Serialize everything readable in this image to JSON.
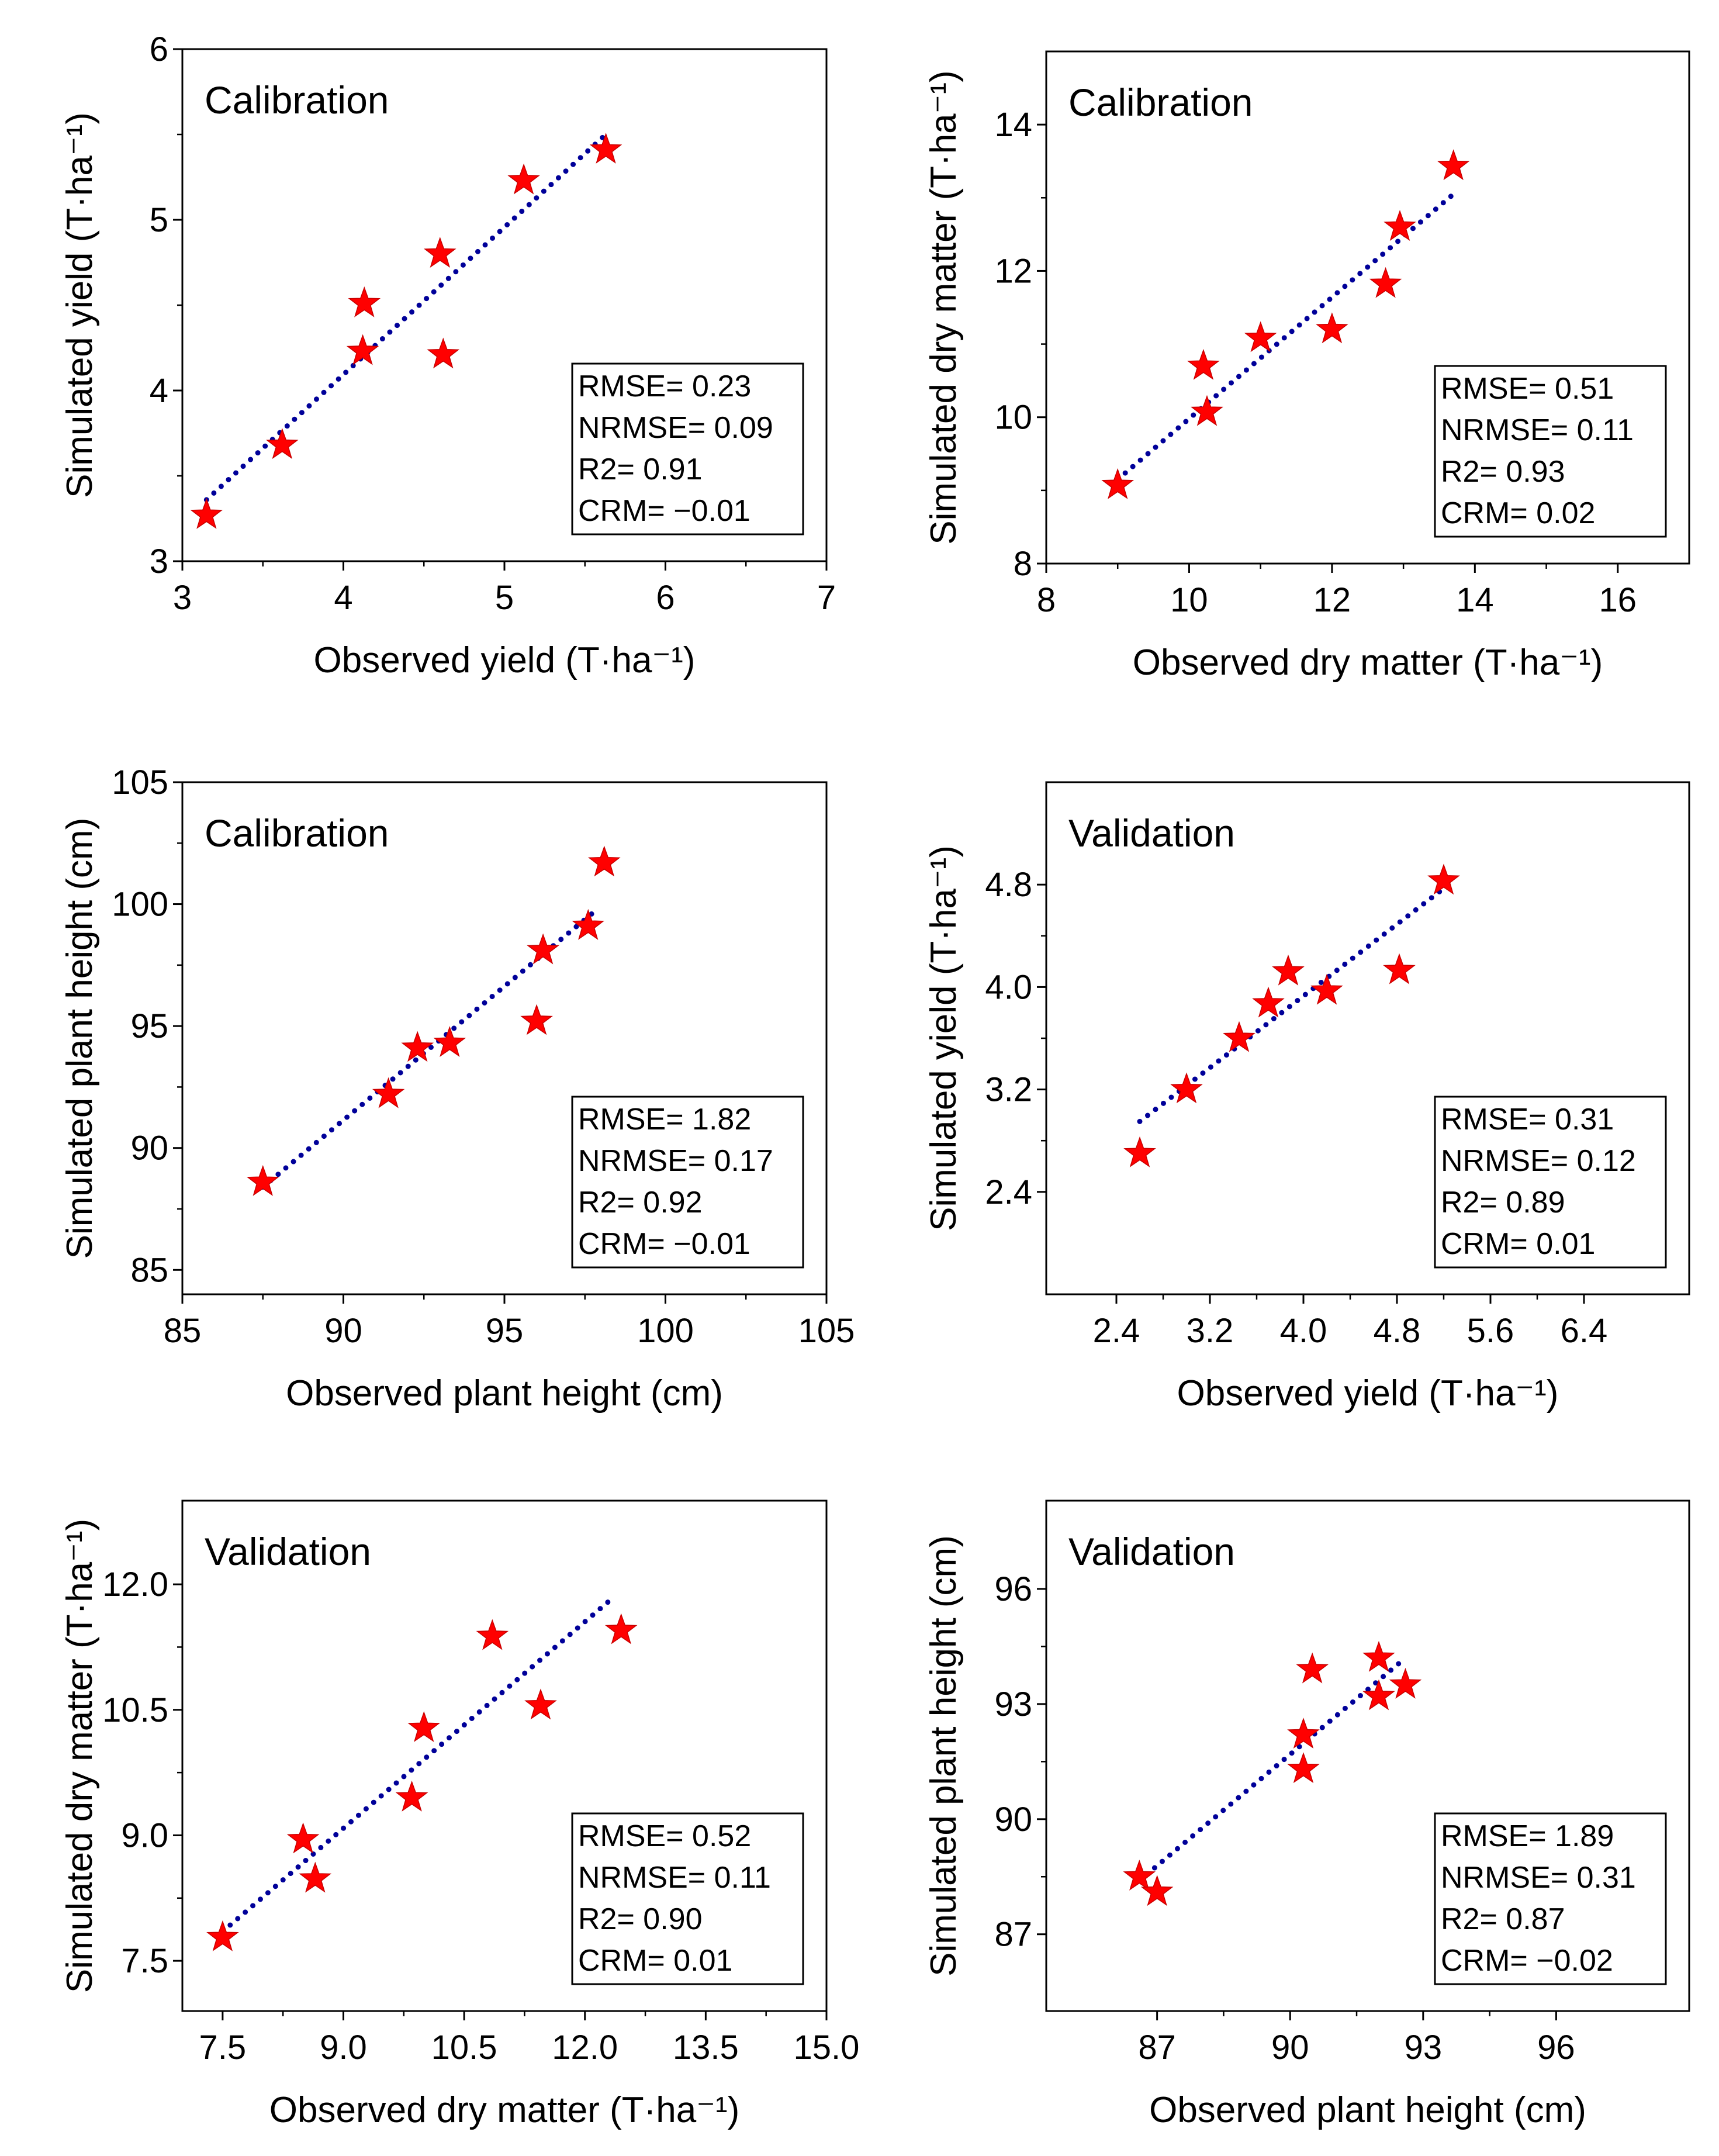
{
  "colors": {
    "marker": "#ff0000",
    "marker_stroke": "#c80000",
    "fit_line": "#000099",
    "axis": "#000000"
  },
  "chart_data": [
    {
      "type": "scatter",
      "title": "Calibration",
      "xlabel": "Observed yield (T·ha⁻¹)",
      "ylabel": "Simulated  yield (T·ha⁻¹)",
      "xlim": [
        3,
        7
      ],
      "ylim": [
        3,
        6
      ],
      "xticks": [
        "3",
        "4",
        "5",
        "6",
        "7"
      ],
      "yticks": [
        "3",
        "4",
        "5",
        "6"
      ],
      "x": [
        3.15,
        3.62,
        4.12,
        4.13,
        4.6,
        4.62,
        5.12,
        5.63
      ],
      "y": [
        3.27,
        3.68,
        4.23,
        4.51,
        4.8,
        4.21,
        5.23,
        5.41
      ],
      "fit": {
        "x": [
          3.15,
          5.63
        ],
        "y": [
          3.36,
          5.5
        ]
      },
      "legend": "bottom-right",
      "stats": [
        "RMSE= 0.23",
        "NRMSE= 0.09",
        "R2= 0.91",
        "CRM= −0.01"
      ]
    },
    {
      "type": "scatter",
      "title": "Calibration",
      "xlabel": "Observed dry matter (T·ha⁻¹)",
      "ylabel": "Simulated dry matter (T·ha⁻¹)",
      "xlim": [
        8,
        17
      ],
      "ylim": [
        8,
        15
      ],
      "xticks": [
        "8",
        "10",
        "12",
        "14",
        "16"
      ],
      "yticks": [
        "8",
        "10",
        "12",
        "14"
      ],
      "x": [
        9.0,
        10.2,
        10.25,
        11.0,
        12.0,
        12.75,
        12.95,
        13.7
      ],
      "y": [
        9.07,
        10.7,
        10.07,
        11.08,
        11.2,
        11.82,
        12.6,
        13.43
      ],
      "fit": {
        "x": [
          9.0,
          13.7
        ],
        "y": [
          9.15,
          13.05
        ]
      },
      "legend": "bottom-right",
      "stats": [
        "RMSE= 0.51",
        "NRMSE= 0.11",
        "R2= 0.93",
        "CRM= 0.02"
      ]
    },
    {
      "type": "scatter",
      "title": "Calibration",
      "xlabel": "Observed plant height (cm)",
      "ylabel": "Simulated plant height (cm)",
      "xlim": [
        85,
        105
      ],
      "ylim": [
        84,
        105
      ],
      "xticks": [
        "85",
        "90",
        "95",
        "100",
        "105"
      ],
      "yticks": [
        "85",
        "90",
        "95",
        "100",
        "105"
      ],
      "x": [
        87.5,
        91.4,
        92.3,
        93.3,
        96.0,
        96.2,
        97.6,
        98.1
      ],
      "y": [
        88.6,
        92.2,
        94.1,
        94.3,
        95.2,
        98.1,
        99.1,
        101.7
      ],
      "fit": {
        "x": [
          87.5,
          97.8
        ],
        "y": [
          88.4,
          99.7
        ]
      },
      "legend": "bottom-right",
      "stats": [
        "RMSE= 1.82",
        "NRMSE= 0.17",
        "R2= 0.92",
        "CRM= −0.01"
      ]
    },
    {
      "type": "scatter",
      "title": "Validation",
      "xlabel": "Observed yield (T·ha⁻¹)",
      "ylabel": "Simulated  yield (T·ha⁻¹)",
      "xlim": [
        1.8,
        7.3
      ],
      "ylim": [
        1.6,
        5.6
      ],
      "xticks": [
        "2.4",
        "3.2",
        "4.0",
        "4.8",
        "5.6",
        "6.4"
      ],
      "yticks": [
        "2.4",
        "3.2",
        "4.0",
        "4.8"
      ],
      "x": [
        2.6,
        3.0,
        3.45,
        3.7,
        3.87,
        4.2,
        4.82,
        5.2
      ],
      "y": [
        2.7,
        3.2,
        3.6,
        3.87,
        4.12,
        3.97,
        4.13,
        4.83
      ],
      "fit": {
        "x": [
          2.6,
          5.2
        ],
        "y": [
          2.95,
          4.77
        ]
      },
      "legend": "bottom-right",
      "stats": [
        "RMSE= 0.31",
        "NRMSE= 0.12",
        "R2= 0.89",
        "CRM= 0.01"
      ]
    },
    {
      "type": "scatter",
      "title": "Validation",
      "xlabel": "Observed dry matter (T·ha⁻¹)",
      "ylabel": "Simulated dry matter (T·ha⁻¹)",
      "xlim": [
        7,
        15
      ],
      "ylim": [
        6.9,
        13.0
      ],
      "xticks": [
        "7.5",
        "9.0",
        "10.5",
        "12.0",
        "13.5",
        "15.0"
      ],
      "yticks": [
        "7.5",
        "9.0",
        "10.5",
        "12.0"
      ],
      "x": [
        7.5,
        8.5,
        8.65,
        9.85,
        10.0,
        10.85,
        11.45,
        12.45
      ],
      "y": [
        7.78,
        8.95,
        8.48,
        9.45,
        10.28,
        11.38,
        10.55,
        11.45
      ],
      "fit": {
        "x": [
          7.5,
          12.3
        ],
        "y": [
          7.85,
          11.8
        ]
      },
      "legend": "bottom-right",
      "stats": [
        "RMSE= 0.52",
        "NRMSE= 0.11",
        "R2= 0.90",
        "CRM= 0.01"
      ]
    },
    {
      "type": "scatter",
      "title": "Validation",
      "xlabel": "Observed plant height (cm)",
      "ylabel": "Simulated plant height (cm)",
      "xlim": [
        84.5,
        99
      ],
      "ylim": [
        85,
        98.3
      ],
      "xticks": [
        "87",
        "90",
        "93",
        "96"
      ],
      "yticks": [
        "87",
        "90",
        "93",
        "96"
      ],
      "x": [
        86.6,
        87.0,
        90.3,
        90.3,
        90.5,
        92.0,
        92.0,
        92.6
      ],
      "y": [
        88.5,
        88.1,
        91.3,
        92.2,
        93.9,
        93.2,
        94.2,
        93.5
      ],
      "fit": {
        "x": [
          86.6,
          92.6
        ],
        "y": [
          88.4,
          94.2
        ]
      },
      "legend": "bottom-right",
      "stats": [
        "RMSE= 1.89",
        "NRMSE= 0.31",
        "R2= 0.87",
        "CRM= −0.02"
      ]
    }
  ]
}
